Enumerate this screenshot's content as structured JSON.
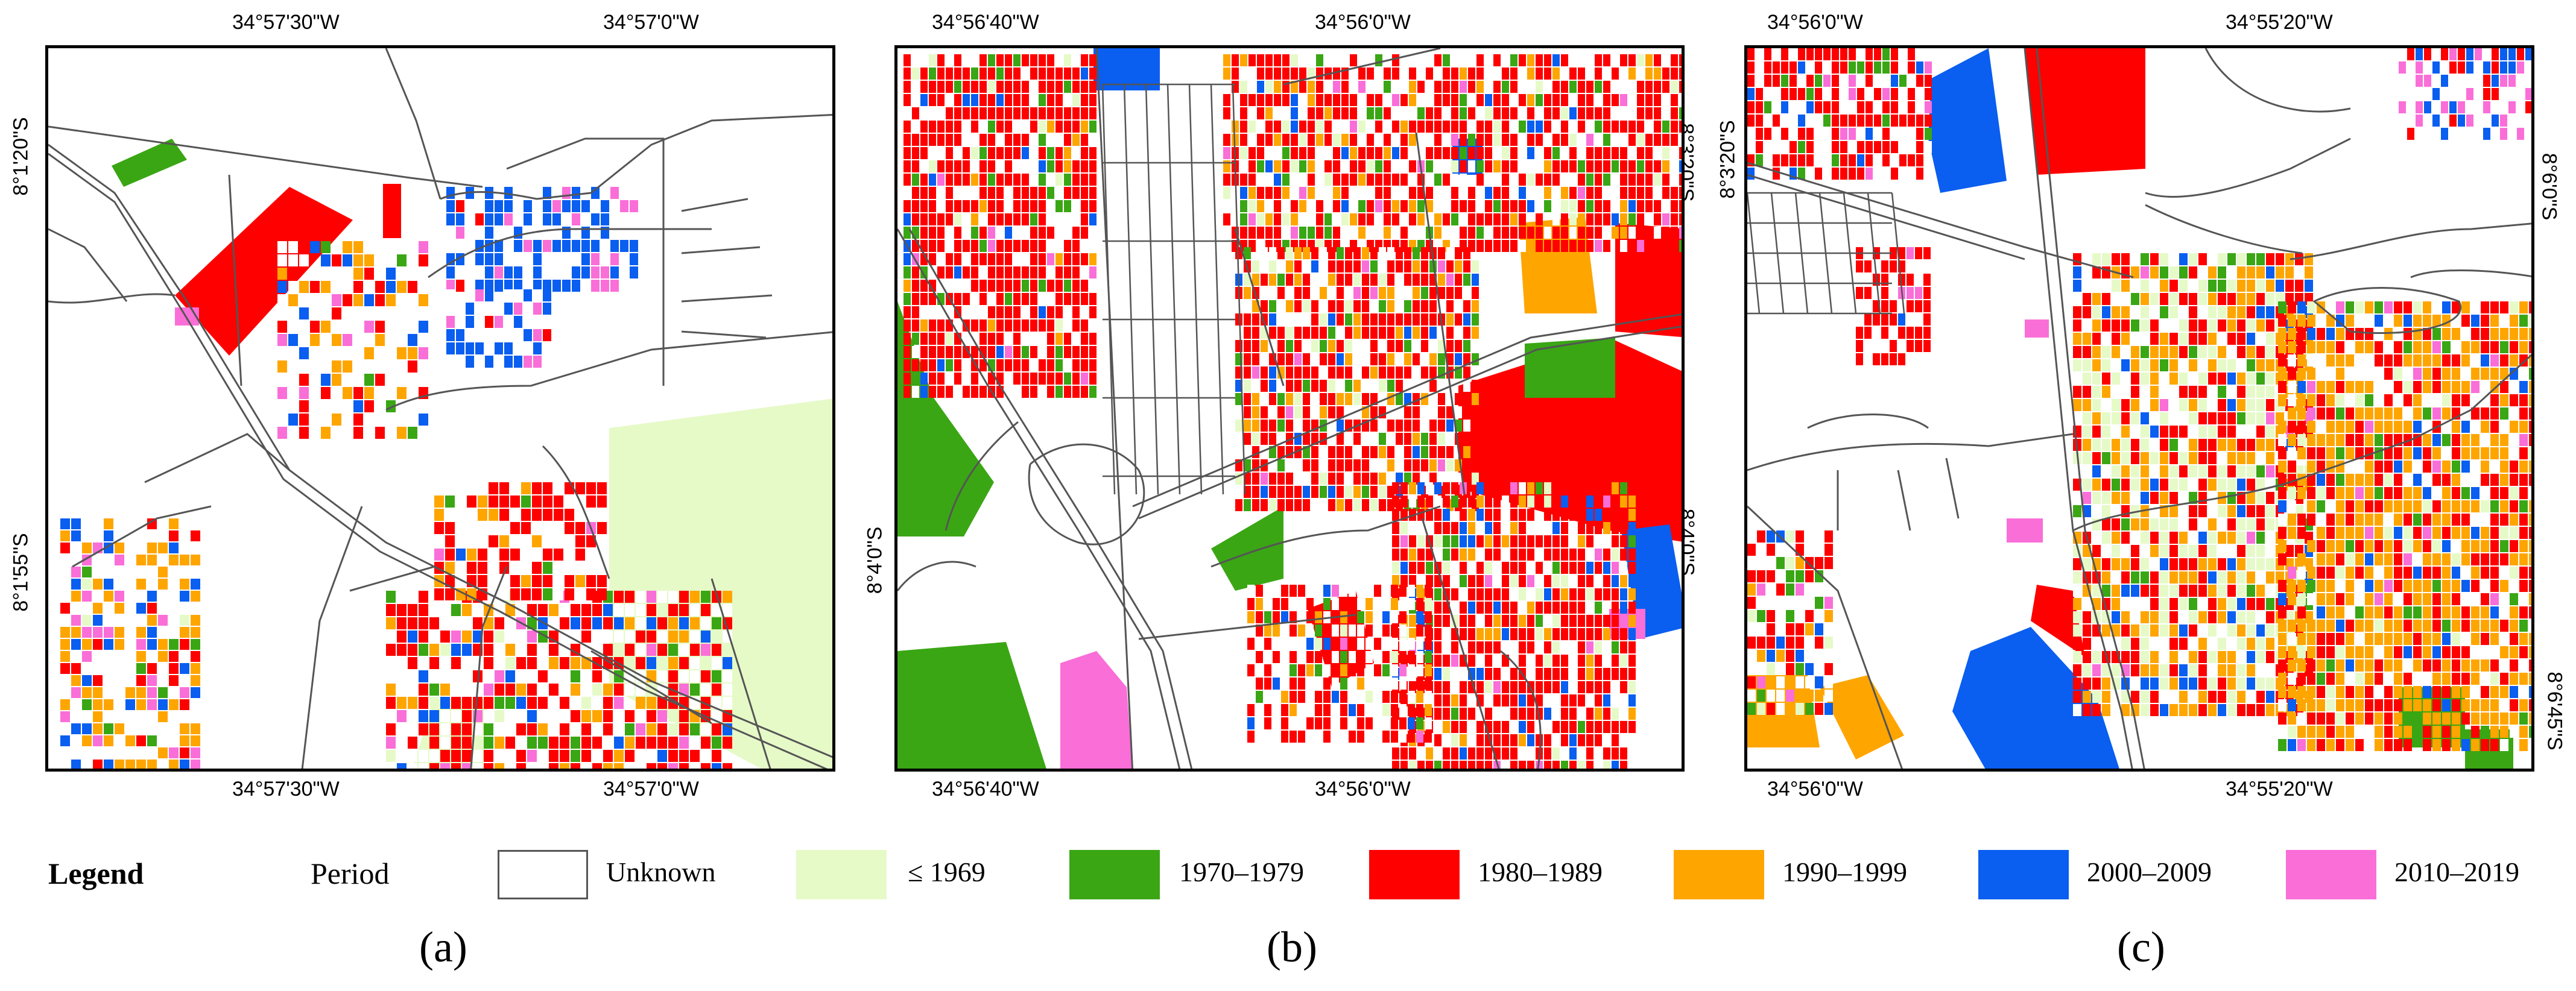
{
  "legend": {
    "title": "Legend",
    "period_label": "Period",
    "items": [
      {
        "label": "Unknown",
        "color": "#ffffff",
        "border": "#555555"
      },
      {
        "label": "≤ 1969",
        "color": "#e6fac8",
        "border": "#e6fac8"
      },
      {
        "label": "1970–1979",
        "color": "#3aa614",
        "border": "#3aa614"
      },
      {
        "label": "1980–1989",
        "color": "#ff0000",
        "border": "#ff0000"
      },
      {
        "label": "1990–1999",
        "color": "#ffa500",
        "border": "#ffa500"
      },
      {
        "label": "2000–2009",
        "color": "#0a5ef0",
        "border": "#0a5ef0"
      },
      {
        "label": "2010–2019",
        "color": "#fa6ed8",
        "border": "#fa6ed8"
      }
    ]
  },
  "panels": [
    {
      "caption": "(a)",
      "top_ticks": [
        "34°57'30\"W",
        "34°57'0\"W"
      ],
      "bottom_ticks": [
        "34°57'30\"W",
        "34°57'0\"W"
      ],
      "left_ticks": [
        "8°1'20\"S",
        "8°1'55\"S"
      ],
      "right_ticks": []
    },
    {
      "caption": "(b)",
      "top_ticks": [
        "34°56'40\"W",
        "34°56'0\"W"
      ],
      "bottom_ticks": [
        "34°56'40\"W",
        "34°56'0\"W"
      ],
      "left_ticks": [
        "8°4'0\"S"
      ],
      "right_ticks": [
        "8°3'20\"S",
        "8°4'0\"S"
      ]
    },
    {
      "caption": "(c)",
      "top_ticks": [
        "34°56'0\"W",
        "34°55'20\"W"
      ],
      "bottom_ticks": [
        "34°56'0\"W",
        "34°55'20\"W"
      ],
      "left_ticks": [
        "8°3'20\"S"
      ],
      "right_ticks": [
        "8°6'0\"S",
        "8°6'45\"S"
      ]
    }
  ]
}
